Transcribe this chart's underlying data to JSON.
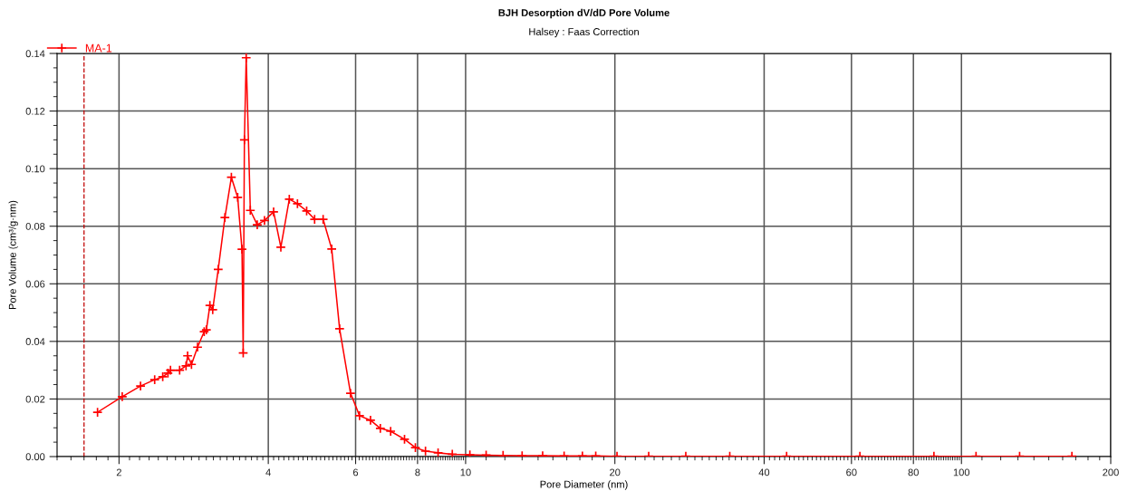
{
  "chart_data": {
    "type": "line",
    "title": "BJH Desorption dV/dD Pore Volume",
    "subtitle": "Halsey : Faas Correction",
    "xlabel": "Pore Diameter (nm)",
    "ylabel": "Pore Volume (cm³/g·nm)",
    "log": "x",
    "xlim": [
      1.5,
      200
    ],
    "xticks": [
      2,
      4,
      6,
      8,
      10,
      20,
      40,
      60,
      80,
      100,
      200
    ],
    "ylim": [
      0,
      0.14
    ],
    "yticks": [
      {
        "value": 0,
        "label": "0.00"
      },
      {
        "value": 0.02,
        "label": "0.02"
      },
      {
        "value": 0.04,
        "label": "0.04"
      },
      {
        "value": 0.06,
        "label": "0.06"
      },
      {
        "value": 0.08,
        "label": "0.08"
      },
      {
        "value": 0.1,
        "label": "0.10"
      },
      {
        "value": 0.12,
        "label": "0.12"
      },
      {
        "value": 0.14,
        "label": "0.14"
      }
    ],
    "grid": true,
    "legend": "top left",
    "marker": "cross",
    "line_style": "solid",
    "ref_lines": [
      {
        "axis": "x",
        "value": 1.7,
        "color": "#c00000",
        "line_style": "dashed"
      }
    ],
    "series": [
      {
        "name": "MA-1",
        "color": "#ff0000",
        "x": [
          1.81,
          2.03,
          2.21,
          2.36,
          2.45,
          2.51,
          2.54,
          2.65,
          2.73,
          2.75,
          2.8,
          2.88,
          2.97,
          3.0,
          3.05,
          3.09,
          3.17,
          3.27,
          3.37,
          3.47,
          3.54,
          3.56,
          3.58,
          3.61,
          3.68,
          3.8,
          3.93,
          4.1,
          4.24,
          4.41,
          4.58,
          4.78,
          4.96,
          5.16,
          5.37,
          5.57,
          5.86,
          6.11,
          6.43,
          6.73,
          7.06,
          7.53,
          7.92,
          8.3,
          8.8,
          9.4,
          10.2,
          11.0,
          11.9,
          13.0,
          14.3,
          15.8,
          17.2,
          18.3,
          20.2,
          23.4,
          27.8,
          34.1,
          44.4,
          62.4,
          88,
          107,
          131,
          167
        ],
        "values": [
          0.0154,
          0.0208,
          0.0245,
          0.0267,
          0.0277,
          0.029,
          0.03,
          0.03,
          0.0315,
          0.035,
          0.032,
          0.038,
          0.0434,
          0.044,
          0.0525,
          0.051,
          0.065,
          0.083,
          0.097,
          0.09,
          0.072,
          0.036,
          0.11,
          0.1385,
          0.0855,
          0.0805,
          0.082,
          0.085,
          0.0727,
          0.0894,
          0.0878,
          0.0853,
          0.0824,
          0.0824,
          0.0721,
          0.0444,
          0.022,
          0.0142,
          0.0126,
          0.0098,
          0.0088,
          0.006,
          0.0031,
          0.0019,
          0.0013,
          0.0008,
          0.0006,
          0.0005,
          0.0004,
          0.0003,
          0.0003,
          0.0002,
          0.0002,
          0.0002,
          0.0001,
          0.0001,
          0.0001,
          0.0001,
          0.0001,
          0.0001,
          0.0001,
          0.0001,
          0.0001,
          0.0001
        ]
      }
    ]
  }
}
